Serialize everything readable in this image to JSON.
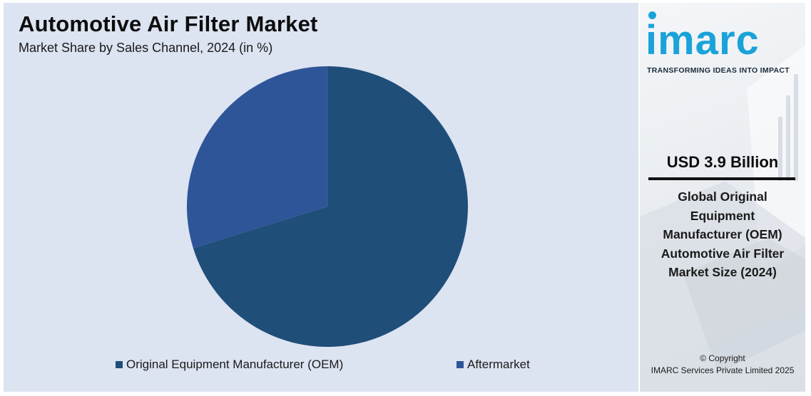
{
  "chart_data": {
    "type": "pie",
    "title": "Automotive Air Filter Market",
    "subtitle": "Market Share by Sales Channel, 2024 (in %)",
    "categories": [
      "Original Equipment Manufacturer (OEM)",
      "Aftermarket"
    ],
    "values": [
      70.2,
      29.8
    ],
    "colors": [
      "#1f4e79",
      "#2e5597"
    ],
    "legend_position": "bottom"
  },
  "side_panel": {
    "brand": "imarc",
    "tagline": "TRANSFORMING IDEAS INTO IMPACT",
    "stat_value": "USD 3.9 Billion",
    "stat_caption": "Global Original Equipment Manufacturer (OEM) Automotive Air Filter Market Size (2024)",
    "copyright_line1": "© Copyright",
    "copyright_line2": "IMARC Services Private Limited 2025",
    "brand_color": "#1aa3d9"
  }
}
